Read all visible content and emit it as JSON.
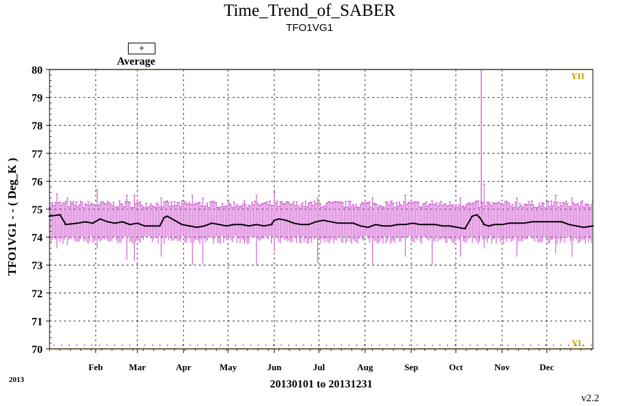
{
  "chart_data": {
    "type": "line",
    "title": "Time_Trend_of_SABER",
    "subtitle": "TFO1VG1",
    "ylabel": "TFO1VG1  - - ( Deg_K )",
    "xlabel": "20130101 to 20131231",
    "year_label": "2013",
    "version": "v2.2",
    "legend": {
      "symbol": "+",
      "label": "Average"
    },
    "ylim": [
      70,
      80
    ],
    "yticks": [
      70,
      71,
      72,
      73,
      74,
      75,
      76,
      77,
      78,
      79,
      80
    ],
    "xlim": [
      1,
      366
    ],
    "x_unit": "day of year 2013",
    "month_ticks": [
      {
        "label": "Feb",
        "day": 32
      },
      {
        "label": "Mar",
        "day": 60
      },
      {
        "label": "Apr",
        "day": 91
      },
      {
        "label": "May",
        "day": 121
      },
      {
        "label": "Jun",
        "day": 152
      },
      {
        "label": "Jul",
        "day": 182
      },
      {
        "label": "Aug",
        "day": 213
      },
      {
        "label": "Sep",
        "day": 244
      },
      {
        "label": "Oct",
        "day": 274
      },
      {
        "label": "Nov",
        "day": 305
      },
      {
        "label": "Dec",
        "day": 335
      }
    ],
    "limit_lines": [
      {
        "name": "YH",
        "value": 80,
        "color": "#c8a000"
      },
      {
        "name": "YL",
        "value": 70,
        "color": "#c8a000"
      }
    ],
    "grid": true,
    "series": [
      {
        "name": "Average",
        "color": "#000000",
        "x": [
          1,
          8,
          12,
          20,
          25,
          30,
          35,
          40,
          45,
          50,
          55,
          60,
          65,
          70,
          75,
          78,
          80,
          85,
          90,
          95,
          100,
          105,
          110,
          115,
          120,
          125,
          130,
          135,
          140,
          145,
          150,
          152,
          155,
          160,
          165,
          170,
          175,
          180,
          185,
          190,
          195,
          200,
          205,
          210,
          215,
          220,
          225,
          230,
          235,
          240,
          245,
          250,
          255,
          260,
          265,
          270,
          275,
          280,
          285,
          288,
          290,
          293,
          296,
          300,
          305,
          310,
          315,
          320,
          325,
          330,
          335,
          340,
          345,
          350,
          355,
          360,
          366
        ],
        "y": [
          74.75,
          74.8,
          74.45,
          74.5,
          74.55,
          74.5,
          74.65,
          74.55,
          74.5,
          74.55,
          74.45,
          74.5,
          74.4,
          74.4,
          74.4,
          74.7,
          74.75,
          74.6,
          74.45,
          74.4,
          74.35,
          74.4,
          74.5,
          74.45,
          74.4,
          74.45,
          74.45,
          74.4,
          74.45,
          74.4,
          74.45,
          74.6,
          74.65,
          74.6,
          74.5,
          74.45,
          74.45,
          74.55,
          74.6,
          74.55,
          74.5,
          74.5,
          74.5,
          74.4,
          74.35,
          74.45,
          74.4,
          74.4,
          74.45,
          74.45,
          74.5,
          74.45,
          74.45,
          74.45,
          74.4,
          74.4,
          74.35,
          74.3,
          74.75,
          74.8,
          74.7,
          74.45,
          74.4,
          74.45,
          74.45,
          74.5,
          74.5,
          74.5,
          74.55,
          74.55,
          74.55,
          74.55,
          74.55,
          74.45,
          74.4,
          74.35,
          74.4
        ]
      },
      {
        "name": "Range",
        "color": "#cc44cc",
        "band_upper": 75.3,
        "band_lower": 73.8,
        "spike": {
          "day": 291,
          "max": 80
        },
        "extremes": [
          {
            "day": 6,
            "max": 75.55,
            "min": 73.6
          },
          {
            "day": 13,
            "max": 75.4,
            "min": 73.7
          },
          {
            "day": 33,
            "max": 75.7,
            "min": 73.6
          },
          {
            "day": 53,
            "max": 75.5,
            "min": 73.2
          },
          {
            "day": 58,
            "max": 75.5,
            "min": 73.15
          },
          {
            "day": 76,
            "max": 75.4,
            "min": 73.3
          },
          {
            "day": 97,
            "max": 75.5,
            "min": 73.0
          },
          {
            "day": 104,
            "max": 75.4,
            "min": 73.05
          },
          {
            "day": 140,
            "max": 75.5,
            "min": 73.0
          },
          {
            "day": 152,
            "max": 75.6,
            "min": 73.5
          },
          {
            "day": 181,
            "max": 75.4,
            "min": 73.1
          },
          {
            "day": 218,
            "max": 75.4,
            "min": 73.0
          },
          {
            "day": 240,
            "max": 75.5,
            "min": 73.3
          },
          {
            "day": 258,
            "max": 75.3,
            "min": 73.0
          },
          {
            "day": 277,
            "max": 75.4,
            "min": 73.3
          },
          {
            "day": 293,
            "max": 75.9,
            "min": 73.6
          },
          {
            "day": 315,
            "max": 75.4,
            "min": 73.3
          },
          {
            "day": 341,
            "max": 75.5,
            "min": 73.4
          },
          {
            "day": 352,
            "max": 75.4,
            "min": 73.3
          }
        ]
      }
    ]
  }
}
